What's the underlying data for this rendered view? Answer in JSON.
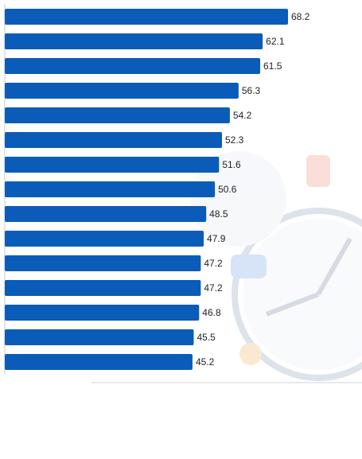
{
  "chart_data": {
    "type": "hbar",
    "color": "#0a5cb8",
    "categories": [
      null,
      null,
      null,
      null,
      null,
      null,
      null,
      null,
      null,
      null,
      null,
      null,
      null,
      null,
      null
    ],
    "values": [
      68.2,
      62.1,
      61.5,
      56.3,
      54.2,
      52.3,
      51.6,
      50.6,
      48.5,
      47.9,
      47.2,
      47.2,
      46.8,
      45.5,
      45.2
    ]
  }
}
